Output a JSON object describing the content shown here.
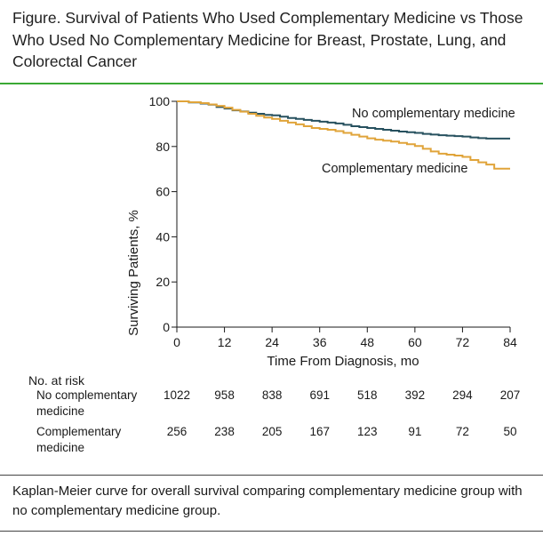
{
  "figure": {
    "title": "Figure. Survival of Patients Who Used Complementary Medicine vs Those Who Used No Complementary Medicine for Breast, Prostate, Lung, and Colorectal Cancer",
    "caption": "Kaplan-Meier curve for overall survival comparing complementary medicine group with no complementary medicine group."
  },
  "colors": {
    "no_cm": "#27515f",
    "cm": "#e0a43a",
    "accent_rule": "#3aa935"
  },
  "chart_data": {
    "type": "line",
    "title": "",
    "xlabel": "Time From Diagnosis, mo",
    "ylabel": "Surviving Patients, %",
    "xlim": [
      0,
      84
    ],
    "ylim": [
      0,
      100
    ],
    "xticks": [
      0,
      12,
      24,
      36,
      48,
      60,
      72,
      84
    ],
    "yticks": [
      0,
      20,
      40,
      60,
      80,
      100
    ],
    "series": [
      {
        "name": "No complementary medicine",
        "x": [
          0,
          3,
          6,
          8,
          10,
          12,
          14,
          16,
          18,
          20,
          22,
          24,
          26,
          28,
          30,
          32,
          34,
          36,
          38,
          40,
          42,
          44,
          46,
          48,
          50,
          52,
          54,
          56,
          58,
          60,
          62,
          64,
          66,
          68,
          70,
          72,
          74,
          76,
          78,
          80,
          82,
          84
        ],
        "y": [
          100,
          99.5,
          99,
          98.5,
          97.5,
          96.8,
          96,
          95.5,
          95,
          94.5,
          94,
          93.8,
          93.2,
          92.6,
          92.2,
          91.8,
          91.4,
          91,
          90.6,
          90.2,
          89.6,
          89,
          88.6,
          88.2,
          87.8,
          87.4,
          87,
          86.6,
          86.3,
          86,
          85.6,
          85.3,
          85,
          84.8,
          84.6,
          84.4,
          84,
          83.7,
          83.5,
          83.5,
          83.5,
          83.5
        ]
      },
      {
        "name": "Complementary medicine",
        "x": [
          0,
          3,
          6,
          8,
          10,
          12,
          14,
          16,
          18,
          20,
          22,
          24,
          26,
          28,
          30,
          32,
          34,
          36,
          38,
          40,
          42,
          44,
          46,
          48,
          50,
          52,
          54,
          56,
          58,
          60,
          62,
          64,
          66,
          68,
          70,
          72,
          74,
          76,
          78,
          80,
          82,
          84
        ],
        "y": [
          100,
          99.6,
          99.2,
          98.6,
          98,
          97.2,
          96.2,
          95.4,
          94.5,
          93.6,
          92.8,
          92.2,
          91.4,
          90.6,
          89.8,
          89,
          88.2,
          87.8,
          87.4,
          86.8,
          86,
          85.2,
          84.4,
          83.6,
          83,
          82.6,
          82.2,
          81.6,
          81,
          80.2,
          79,
          77.8,
          76.8,
          76.4,
          76,
          75.4,
          74,
          73,
          72,
          70.2,
          70.2,
          70.2
        ]
      }
    ],
    "annotations": [
      "No complementary medicine",
      "Complementary medicine"
    ]
  },
  "risk_table": {
    "title": "No. at risk",
    "rows": [
      {
        "label_line1": "No complementary",
        "label_line2": "medicine",
        "values": [
          "1022",
          "958",
          "838",
          "691",
          "518",
          "392",
          "294",
          "207"
        ]
      },
      {
        "label_line1": "Complementary",
        "label_line2": "medicine",
        "values": [
          "256",
          "238",
          "205",
          "167",
          "123",
          "91",
          "72",
          "50"
        ]
      }
    ]
  }
}
